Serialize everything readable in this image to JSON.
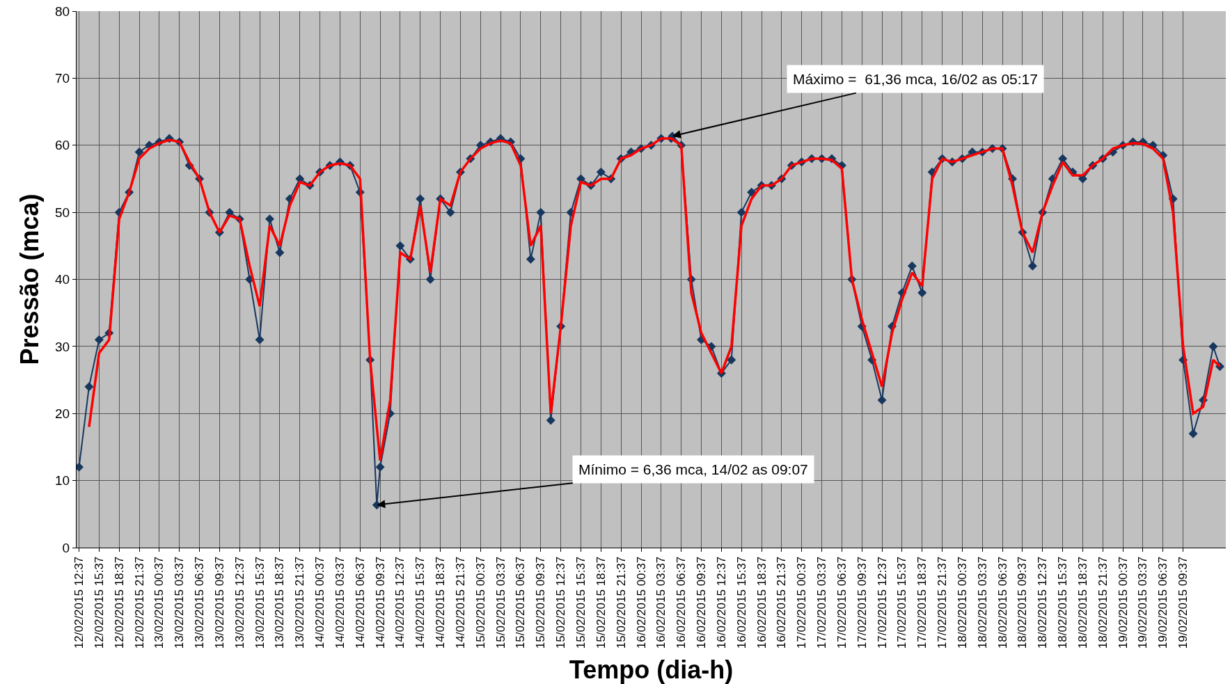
{
  "chart_data": {
    "type": "line",
    "xlabel": "Tempo (dia-h)",
    "ylabel": "Pressão (mca)",
    "xlim": [
      "2015-02-12T12:15",
      "2015-02-19T16:00"
    ],
    "ylim": [
      0,
      80
    ],
    "yticks": [
      0,
      10,
      20,
      30,
      40,
      50,
      60,
      70,
      80
    ],
    "xticks": [
      {
        "value": "2015-02-12T12:37",
        "label": "12/02/2015 12:37"
      },
      {
        "value": "2015-02-12T15:37",
        "label": "12/02/2015 15:37"
      },
      {
        "value": "2015-02-12T18:37",
        "label": "12/02/2015 18:37"
      },
      {
        "value": "2015-02-12T21:37",
        "label": "12/02/2015 21:37"
      },
      {
        "value": "2015-02-13T00:37",
        "label": "13/02/2015 00:37"
      },
      {
        "value": "2015-02-13T03:37",
        "label": "13/02/2015 03:37"
      },
      {
        "value": "2015-02-13T06:37",
        "label": "13/02/2015 06:37"
      },
      {
        "value": "2015-02-13T09:37",
        "label": "13/02/2015 09:37"
      },
      {
        "value": "2015-02-13T12:37",
        "label": "13/02/2015 12:37"
      },
      {
        "value": "2015-02-13T15:37",
        "label": "13/02/2015 15:37"
      },
      {
        "value": "2015-02-13T18:37",
        "label": "13/02/2015 18:37"
      },
      {
        "value": "2015-02-13T21:37",
        "label": "13/02/2015 21:37"
      },
      {
        "value": "2015-02-14T00:37",
        "label": "14/02/2015 00:37"
      },
      {
        "value": "2015-02-14T03:37",
        "label": "14/02/2015 03:37"
      },
      {
        "value": "2015-02-14T06:37",
        "label": "14/02/2015 06:37"
      },
      {
        "value": "2015-02-14T09:37",
        "label": "14/02/2015 09:37"
      },
      {
        "value": "2015-02-14T12:37",
        "label": "14/02/2015 12:37"
      },
      {
        "value": "2015-02-14T15:37",
        "label": "14/02/2015 15:37"
      },
      {
        "value": "2015-02-14T18:37",
        "label": "14/02/2015 18:37"
      },
      {
        "value": "2015-02-14T21:37",
        "label": "14/02/2015 21:37"
      },
      {
        "value": "2015-02-15T00:37",
        "label": "15/02/2015 00:37"
      },
      {
        "value": "2015-02-15T03:37",
        "label": "15/02/2015 03:37"
      },
      {
        "value": "2015-02-15T06:37",
        "label": "15/02/2015 06:37"
      },
      {
        "value": "2015-02-15T09:37",
        "label": "15/02/2015 09:37"
      },
      {
        "value": "2015-02-15T12:37",
        "label": "15/02/2015 12:37"
      },
      {
        "value": "2015-02-15T15:37",
        "label": "15/02/2015 15:37"
      },
      {
        "value": "2015-02-15T18:37",
        "label": "15/02/2015 18:37"
      },
      {
        "value": "2015-02-15T21:37",
        "label": "15/02/2015 21:37"
      },
      {
        "value": "2015-02-16T00:37",
        "label": "16/02/2015 00:37"
      },
      {
        "value": "2015-02-16T03:37",
        "label": "16/02/2015 03:37"
      },
      {
        "value": "2015-02-16T06:37",
        "label": "16/02/2015 06:37"
      },
      {
        "value": "2015-02-16T09:37",
        "label": "16/02/2015 09:37"
      },
      {
        "value": "2015-02-16T12:37",
        "label": "16/02/2015 12:37"
      },
      {
        "value": "2015-02-16T15:37",
        "label": "16/02/2015 15:37"
      },
      {
        "value": "2015-02-16T18:37",
        "label": "16/02/2015 18:37"
      },
      {
        "value": "2015-02-16T21:37",
        "label": "16/02/2015 21:37"
      },
      {
        "value": "2015-02-17T00:37",
        "label": "17/02/2015 00:37"
      },
      {
        "value": "2015-02-17T03:37",
        "label": "17/02/2015 03:37"
      },
      {
        "value": "2015-02-17T06:37",
        "label": "17/02/2015 06:37"
      },
      {
        "value": "2015-02-17T09:37",
        "label": "17/02/2015 09:37"
      },
      {
        "value": "2015-02-17T12:37",
        "label": "17/02/2015 12:37"
      },
      {
        "value": "2015-02-17T15:37",
        "label": "17/02/2015 15:37"
      },
      {
        "value": "2015-02-17T18:37",
        "label": "17/02/2015 18:37"
      },
      {
        "value": "2015-02-17T21:37",
        "label": "17/02/2015 21:37"
      },
      {
        "value": "2015-02-18T00:37",
        "label": "18/02/2015 00:37"
      },
      {
        "value": "2015-02-18T03:37",
        "label": "18/02/2015 03:37"
      },
      {
        "value": "2015-02-18T06:37",
        "label": "18/02/2015 06:37"
      },
      {
        "value": "2015-02-18T09:37",
        "label": "18/02/2015 09:37"
      },
      {
        "value": "2015-02-18T12:37",
        "label": "18/02/2015 12:37"
      },
      {
        "value": "2015-02-18T15:37",
        "label": "18/02/2015 15:37"
      },
      {
        "value": "2015-02-18T18:37",
        "label": "18/02/2015 18:37"
      },
      {
        "value": "2015-02-18T21:37",
        "label": "18/02/2015 21:37"
      },
      {
        "value": "2015-02-19T00:37",
        "label": "19/02/2015 00:37"
      },
      {
        "value": "2015-02-19T03:37",
        "label": "19/02/2015 03:37"
      },
      {
        "value": "2015-02-19T06:37",
        "label": "19/02/2015 06:37"
      },
      {
        "value": "2015-02-19T09:37",
        "label": "19/02/2015 09:37"
      }
    ],
    "grid": true,
    "annotations": [
      {
        "text": "Máximo =  61,36 mca, 16/02 as 05:17",
        "x": "2015-02-16T05:17",
        "y": 61.36
      },
      {
        "text": "Mínimo = 6,36 mca, 14/02 as 09:07",
        "x": "2015-02-14T09:07",
        "y": 6.36
      }
    ],
    "series": [
      {
        "color": "#17375e",
        "marker": "diamond",
        "line_style": "solid",
        "x": [
          "2015-02-12T12:37",
          "2015-02-12T14:07",
          "2015-02-12T15:37",
          "2015-02-12T17:07",
          "2015-02-12T18:37",
          "2015-02-12T20:07",
          "2015-02-12T21:37",
          "2015-02-12T23:07",
          "2015-02-13T00:37",
          "2015-02-13T02:07",
          "2015-02-13T03:37",
          "2015-02-13T05:07",
          "2015-02-13T06:37",
          "2015-02-13T08:07",
          "2015-02-13T09:37",
          "2015-02-13T11:07",
          "2015-02-13T12:37",
          "2015-02-13T14:07",
          "2015-02-13T15:37",
          "2015-02-13T17:07",
          "2015-02-13T18:37",
          "2015-02-13T20:07",
          "2015-02-13T21:37",
          "2015-02-13T23:07",
          "2015-02-14T00:37",
          "2015-02-14T02:07",
          "2015-02-14T03:37",
          "2015-02-14T05:07",
          "2015-02-14T06:37",
          "2015-02-14T08:07",
          "2015-02-14T09:07",
          "2015-02-14T09:37",
          "2015-02-14T11:07",
          "2015-02-14T12:37",
          "2015-02-14T14:07",
          "2015-02-14T15:37",
          "2015-02-14T17:07",
          "2015-02-14T18:37",
          "2015-02-14T20:07",
          "2015-02-14T21:37",
          "2015-02-14T23:07",
          "2015-02-15T00:37",
          "2015-02-15T02:07",
          "2015-02-15T03:37",
          "2015-02-15T05:07",
          "2015-02-15T06:37",
          "2015-02-15T08:07",
          "2015-02-15T09:37",
          "2015-02-15T11:07",
          "2015-02-15T12:37",
          "2015-02-15T14:07",
          "2015-02-15T15:37",
          "2015-02-15T17:07",
          "2015-02-15T18:37",
          "2015-02-15T20:07",
          "2015-02-15T21:37",
          "2015-02-15T23:07",
          "2015-02-16T00:37",
          "2015-02-16T02:07",
          "2015-02-16T03:37",
          "2015-02-16T05:07",
          "2015-02-16T05:17",
          "2015-02-16T06:37",
          "2015-02-16T08:07",
          "2015-02-16T09:37",
          "2015-02-16T11:07",
          "2015-02-16T12:37",
          "2015-02-16T14:07",
          "2015-02-16T15:37",
          "2015-02-16T17:07",
          "2015-02-16T18:37",
          "2015-02-16T20:07",
          "2015-02-16T21:37",
          "2015-02-16T23:07",
          "2015-02-17T00:37",
          "2015-02-17T02:07",
          "2015-02-17T03:37",
          "2015-02-17T05:07",
          "2015-02-17T06:37",
          "2015-02-17T08:07",
          "2015-02-17T09:37",
          "2015-02-17T11:07",
          "2015-02-17T12:37",
          "2015-02-17T14:07",
          "2015-02-17T15:37",
          "2015-02-17T17:07",
          "2015-02-17T18:37",
          "2015-02-17T20:07",
          "2015-02-17T21:37",
          "2015-02-17T23:07",
          "2015-02-18T00:37",
          "2015-02-18T02:07",
          "2015-02-18T03:37",
          "2015-02-18T05:07",
          "2015-02-18T06:37",
          "2015-02-18T08:07",
          "2015-02-18T09:37",
          "2015-02-18T11:07",
          "2015-02-18T12:37",
          "2015-02-18T14:07",
          "2015-02-18T15:37",
          "2015-02-18T17:07",
          "2015-02-18T18:37",
          "2015-02-18T20:07",
          "2015-02-18T21:37",
          "2015-02-18T23:07",
          "2015-02-19T00:37",
          "2015-02-19T02:07",
          "2015-02-19T03:37",
          "2015-02-19T05:07",
          "2015-02-19T06:37",
          "2015-02-19T08:07",
          "2015-02-19T09:37",
          "2015-02-19T11:07",
          "2015-02-19T12:37",
          "2015-02-19T14:07",
          "2015-02-19T15:07"
        ],
        "values": [
          12,
          24,
          31,
          32,
          50,
          53,
          59,
          60,
          60.5,
          61,
          60.5,
          57,
          55,
          50,
          47,
          50,
          49,
          40,
          31,
          49,
          44,
          52,
          55,
          54,
          56,
          57,
          57.5,
          57,
          53,
          28,
          6.36,
          12,
          20,
          45,
          43,
          52,
          40,
          52,
          50,
          56,
          58,
          60,
          60.5,
          61,
          60.5,
          58,
          43,
          50,
          19,
          33,
          50,
          55,
          54,
          56,
          55,
          58,
          59,
          59.5,
          60,
          61,
          61,
          61.36,
          60,
          40,
          31,
          30,
          26,
          28,
          50,
          53,
          54,
          54,
          55,
          57,
          57.5,
          58,
          58,
          58,
          57,
          40,
          33,
          28,
          22,
          33,
          38,
          42,
          38,
          56,
          58,
          57.5,
          58,
          59,
          59,
          59.5,
          59.5,
          55,
          47,
          42,
          50,
          55,
          58,
          56,
          55,
          57,
          58,
          59,
          60,
          60.5,
          60.5,
          60,
          58.5,
          52,
          28,
          17,
          22,
          30,
          27
        ]
      },
      {
        "color": "#ff0000",
        "marker": "none",
        "line_style": "solid",
        "x": [
          "2015-02-12T14:07",
          "2015-02-12T15:37",
          "2015-02-12T17:07",
          "2015-02-12T18:37",
          "2015-02-12T20:07",
          "2015-02-12T21:37",
          "2015-02-12T23:07",
          "2015-02-13T00:37",
          "2015-02-13T02:07",
          "2015-02-13T03:37",
          "2015-02-13T05:07",
          "2015-02-13T06:37",
          "2015-02-13T08:07",
          "2015-02-13T09:37",
          "2015-02-13T11:07",
          "2015-02-13T12:37",
          "2015-02-13T14:07",
          "2015-02-13T15:37",
          "2015-02-13T17:07",
          "2015-02-13T18:37",
          "2015-02-13T20:07",
          "2015-02-13T21:37",
          "2015-02-13T23:07",
          "2015-02-14T00:37",
          "2015-02-14T02:07",
          "2015-02-14T03:37",
          "2015-02-14T05:07",
          "2015-02-14T06:37",
          "2015-02-14T08:07",
          "2015-02-14T09:37",
          "2015-02-14T11:07",
          "2015-02-14T12:37",
          "2015-02-14T14:07",
          "2015-02-14T15:37",
          "2015-02-14T17:07",
          "2015-02-14T18:37",
          "2015-02-14T20:07",
          "2015-02-14T21:37",
          "2015-02-14T23:07",
          "2015-02-15T00:37",
          "2015-02-15T02:07",
          "2015-02-15T03:37",
          "2015-02-15T05:07",
          "2015-02-15T06:37",
          "2015-02-15T08:07",
          "2015-02-15T09:37",
          "2015-02-15T11:07",
          "2015-02-15T12:37",
          "2015-02-15T14:07",
          "2015-02-15T15:37",
          "2015-02-15T17:07",
          "2015-02-15T18:37",
          "2015-02-15T20:07",
          "2015-02-15T21:37",
          "2015-02-15T23:07",
          "2015-02-16T00:37",
          "2015-02-16T02:07",
          "2015-02-16T03:37",
          "2015-02-16T05:07",
          "2015-02-16T06:37",
          "2015-02-16T08:07",
          "2015-02-16T09:37",
          "2015-02-16T11:07",
          "2015-02-16T12:37",
          "2015-02-16T14:07",
          "2015-02-16T15:37",
          "2015-02-16T17:07",
          "2015-02-16T18:37",
          "2015-02-16T20:07",
          "2015-02-16T21:37",
          "2015-02-16T23:07",
          "2015-02-17T00:37",
          "2015-02-17T02:07",
          "2015-02-17T03:37",
          "2015-02-17T05:07",
          "2015-02-17T06:37",
          "2015-02-17T08:07",
          "2015-02-17T09:37",
          "2015-02-17T11:07",
          "2015-02-17T12:37",
          "2015-02-17T14:07",
          "2015-02-17T15:37",
          "2015-02-17T17:07",
          "2015-02-17T18:37",
          "2015-02-17T20:07",
          "2015-02-17T21:37",
          "2015-02-17T23:07",
          "2015-02-18T00:37",
          "2015-02-18T02:07",
          "2015-02-18T03:37",
          "2015-02-18T05:07",
          "2015-02-18T06:37",
          "2015-02-18T08:07",
          "2015-02-18T09:37",
          "2015-02-18T11:07",
          "2015-02-18T12:37",
          "2015-02-18T14:07",
          "2015-02-18T15:37",
          "2015-02-18T17:07",
          "2015-02-18T18:37",
          "2015-02-18T20:07",
          "2015-02-18T21:37",
          "2015-02-18T23:07",
          "2015-02-19T00:37",
          "2015-02-19T02:07",
          "2015-02-19T03:37",
          "2015-02-19T05:07",
          "2015-02-19T06:37",
          "2015-02-19T08:07",
          "2015-02-19T09:37",
          "2015-02-19T11:07",
          "2015-02-19T12:37",
          "2015-02-19T14:07",
          "2015-02-19T15:07"
        ],
        "values": [
          18,
          29,
          31,
          49,
          53,
          58,
          59.5,
          60.3,
          60.8,
          60.5,
          57.5,
          55,
          50,
          47,
          49.5,
          49,
          42,
          36,
          48,
          45,
          51,
          54.5,
          54,
          56,
          57,
          57.3,
          57,
          55,
          28,
          13,
          22,
          44,
          43,
          51,
          41,
          52,
          51,
          56,
          58,
          59.5,
          60.3,
          60.7,
          60.3,
          57,
          45,
          48,
          20,
          33,
          48,
          54.5,
          54,
          55,
          55,
          58,
          58.5,
          59.5,
          60,
          61,
          61,
          60,
          38,
          32,
          29,
          26,
          30,
          48,
          52,
          54,
          54,
          55,
          57,
          57.5,
          58,
          58,
          57.8,
          56.5,
          40,
          34,
          29,
          24,
          32,
          37,
          41,
          39,
          55,
          58,
          57.5,
          58,
          58.5,
          59,
          59.5,
          59.5,
          54,
          47,
          44,
          50,
          54,
          57.5,
          55.5,
          55.5,
          57,
          58,
          59.5,
          60,
          60.3,
          60.2,
          59.5,
          58,
          50,
          30,
          20,
          21,
          28,
          27
        ]
      }
    ]
  }
}
